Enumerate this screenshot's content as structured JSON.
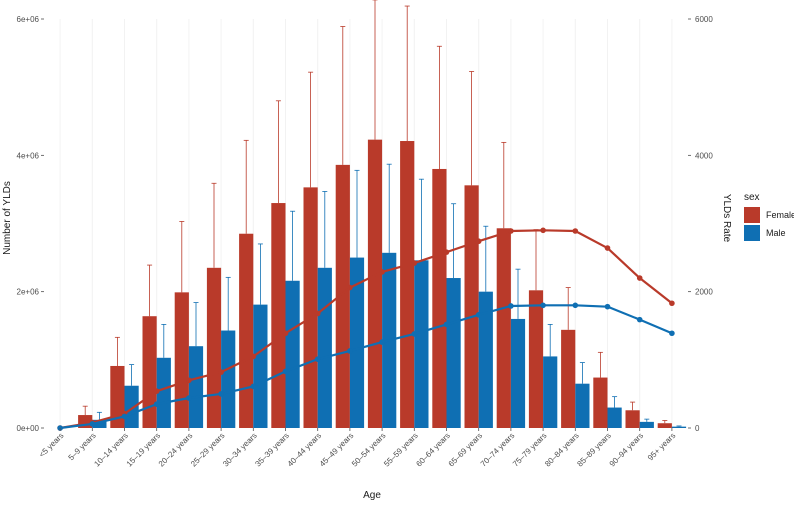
{
  "chart_data": {
    "type": "bar",
    "title": "",
    "xlabel": "Age",
    "ylabel": "Number of YLDs",
    "y2label": "YLDs Rate",
    "ylim": [
      0,
      6000000
    ],
    "y2lim": [
      0,
      6000
    ],
    "y_ticks": [
      "0e+00",
      "2e+06",
      "4e+06",
      "6e+06"
    ],
    "y_tick_values": [
      0,
      2000000,
      4000000,
      6000000
    ],
    "y2_ticks": [
      "0",
      "2000",
      "4000",
      "6000"
    ],
    "y2_tick_values": [
      0,
      2000,
      4000,
      6000
    ],
    "categories": [
      "<5 years",
      "5–9 years",
      "10–14 years",
      "15–19 years",
      "20–24 years",
      "25–29 years",
      "30–34 years",
      "35–39 years",
      "40–44 years",
      "45–49 years",
      "50–54 years",
      "55–59 years",
      "60–64 years",
      "65–69 years",
      "70–74 years",
      "75–79 years",
      "80–84 years",
      "85–89 years",
      "90–94 years",
      "95+ years"
    ],
    "legend": {
      "title": "sex",
      "position": "right",
      "entries": [
        "Female",
        "Male"
      ]
    },
    "colors": {
      "Female": "#b93a2a",
      "Male": "#0f6fb3"
    },
    "series": [
      {
        "name": "Female",
        "bars": [
          0,
          190000,
          910000,
          1640000,
          1990000,
          2350000,
          2850000,
          3300000,
          3530000,
          3860000,
          4230000,
          4210000,
          3800000,
          3560000,
          2930000,
          2020000,
          1440000,
          740000,
          260000,
          70000
        ],
        "upper": [
          0,
          320000,
          1330000,
          2390000,
          3030000,
          3590000,
          4220000,
          4800000,
          5220000,
          5890000,
          6280000,
          6190000,
          5600000,
          5230000,
          4190000,
          2910000,
          2060000,
          1110000,
          380000,
          110000
        ],
        "rate": [
          0,
          80,
          210,
          540,
          700,
          820,
          1050,
          1390,
          1680,
          2060,
          2290,
          2420,
          2580,
          2740,
          2890,
          2900,
          2890,
          2640,
          2200,
          1830
        ]
      },
      {
        "name": "Male",
        "bars": [
          0,
          120000,
          620000,
          1030000,
          1200000,
          1430000,
          1810000,
          2160000,
          2350000,
          2500000,
          2570000,
          2460000,
          2200000,
          2000000,
          1600000,
          1050000,
          650000,
          300000,
          90000,
          20000
        ],
        "upper": [
          0,
          230000,
          930000,
          1520000,
          1840000,
          2210000,
          2700000,
          3180000,
          3470000,
          3780000,
          3870000,
          3650000,
          3290000,
          2960000,
          2330000,
          1520000,
          960000,
          460000,
          130000,
          30000
        ],
        "rate": [
          0,
          60,
          170,
          350,
          440,
          500,
          610,
          830,
          1010,
          1130,
          1260,
          1380,
          1520,
          1660,
          1790,
          1800,
          1800,
          1780,
          1590,
          1390
        ]
      }
    ]
  }
}
